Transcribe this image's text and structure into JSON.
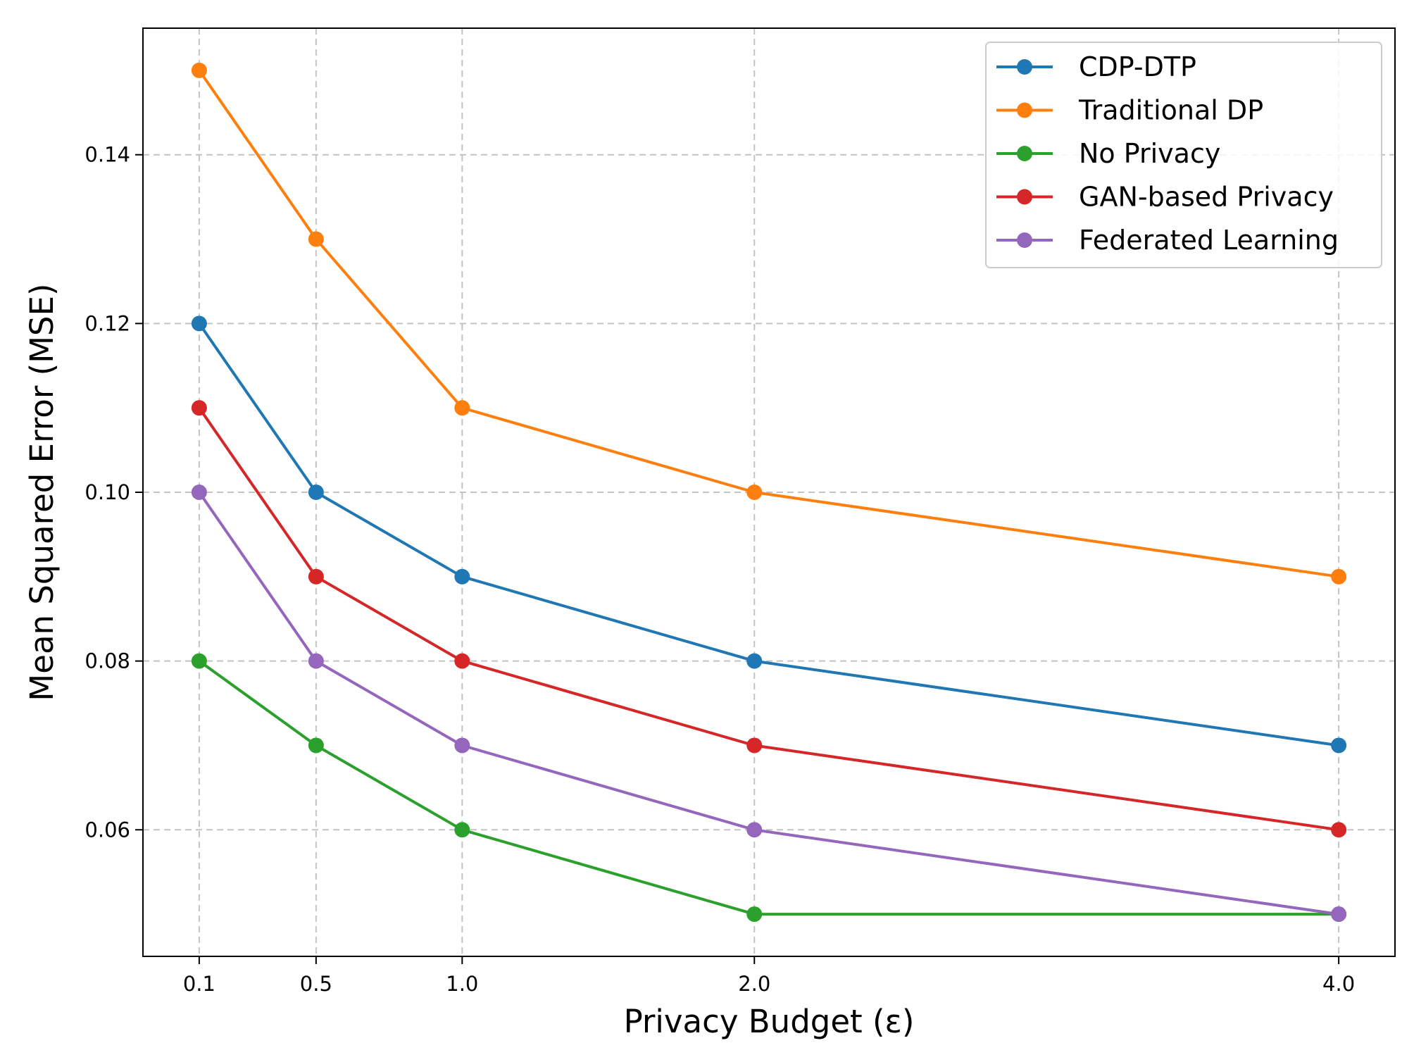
{
  "chart_data": {
    "type": "line",
    "xlabel": "Privacy Budget (ε)",
    "ylabel": "Mean Squared Error (MSE)",
    "x": [
      0.1,
      0.5,
      1.0,
      2.0,
      4.0
    ],
    "x_tick_labels": [
      "0.1",
      "0.5",
      "1.0",
      "2.0",
      "4.0"
    ],
    "xlim": [
      -0.0925,
      4.1925
    ],
    "ylim": [
      0.045,
      0.155
    ],
    "y_ticks": [
      0.06,
      0.08,
      0.1,
      0.12,
      0.14
    ],
    "y_tick_labels": [
      "0.06",
      "0.08",
      "0.10",
      "0.12",
      "0.14"
    ],
    "grid": true,
    "legend_position": "top-right",
    "series": [
      {
        "name": "CDP-DTP",
        "color": "#1f77b4",
        "values": [
          0.12,
          0.1,
          0.09,
          0.08,
          0.07
        ]
      },
      {
        "name": "Traditional DP",
        "color": "#ff7f0e",
        "values": [
          0.15,
          0.13,
          0.11,
          0.1,
          0.09
        ]
      },
      {
        "name": "No Privacy",
        "color": "#2ca02c",
        "values": [
          0.08,
          0.07,
          0.06,
          0.05,
          0.05
        ]
      },
      {
        "name": "GAN-based Privacy",
        "color": "#d62728",
        "values": [
          0.11,
          0.09,
          0.08,
          0.07,
          0.06
        ]
      },
      {
        "name": "Federated Learning",
        "color": "#9467bd",
        "values": [
          0.1,
          0.08,
          0.07,
          0.06,
          0.05
        ]
      }
    ]
  }
}
